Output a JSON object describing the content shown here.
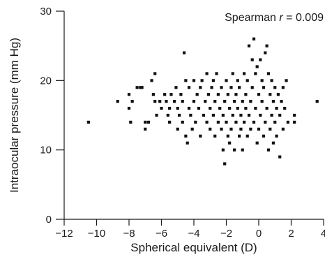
{
  "chart_data": {
    "type": "scatter",
    "title": "",
    "xlabel": "Spherical equivalent (D)",
    "ylabel": "Intraocular pressure (mm Hg)",
    "xlim": [
      -12,
      4
    ],
    "ylim": [
      0,
      30
    ],
    "x_ticks": [
      -12,
      -10,
      -8,
      -6,
      -4,
      -2,
      0,
      2,
      4
    ],
    "x_tick_labels": [
      "−12",
      "−10",
      "−8",
      "−6",
      "−4",
      "−2",
      "0",
      "2",
      "4"
    ],
    "y_ticks": [
      0,
      10,
      20,
      30
    ],
    "y_tick_labels": [
      "0",
      "10",
      "20",
      "30"
    ],
    "grid": false,
    "legend": "none",
    "annotation": {
      "prefix": "Spearman ",
      "symbol": "r",
      "suffix": " = 0.009"
    },
    "marker_color": "#111111",
    "series": [
      {
        "name": "",
        "points": [
          [
            -10.5,
            14
          ],
          [
            -8.7,
            17
          ],
          [
            -8.0,
            18
          ],
          [
            -8.0,
            16
          ],
          [
            -7.9,
            14
          ],
          [
            -7.8,
            17
          ],
          [
            -7.5,
            19
          ],
          [
            -7.3,
            19
          ],
          [
            -7.2,
            19
          ],
          [
            -7.0,
            14
          ],
          [
            -7.0,
            13
          ],
          [
            -6.8,
            14
          ],
          [
            -6.6,
            20
          ],
          [
            -6.5,
            18
          ],
          [
            -6.4,
            17
          ],
          [
            -6.4,
            21
          ],
          [
            -6.3,
            15
          ],
          [
            -6.1,
            17
          ],
          [
            -6.0,
            16
          ],
          [
            -5.8,
            18
          ],
          [
            -5.7,
            17
          ],
          [
            -5.6,
            15
          ],
          [
            -5.5,
            16
          ],
          [
            -5.5,
            14
          ],
          [
            -5.4,
            18
          ],
          [
            -5.2,
            17
          ],
          [
            -5.1,
            19
          ],
          [
            -5.0,
            16
          ],
          [
            -5.0,
            13
          ],
          [
            -4.9,
            15
          ],
          [
            -4.8,
            18
          ],
          [
            -4.7,
            17
          ],
          [
            -4.7,
            14
          ],
          [
            -4.6,
            24
          ],
          [
            -4.5,
            12
          ],
          [
            -4.5,
            20
          ],
          [
            -4.4,
            11
          ],
          [
            -4.3,
            19
          ],
          [
            -4.3,
            16
          ],
          [
            -4.2,
            15
          ],
          [
            -4.1,
            13
          ],
          [
            -4.0,
            17
          ],
          [
            -4.0,
            20
          ],
          [
            -3.9,
            14
          ],
          [
            -3.8,
            18
          ],
          [
            -3.7,
            16
          ],
          [
            -3.6,
            12
          ],
          [
            -3.6,
            19
          ],
          [
            -3.5,
            20
          ],
          [
            -3.4,
            15
          ],
          [
            -3.3,
            17
          ],
          [
            -3.2,
            21
          ],
          [
            -3.2,
            14
          ],
          [
            -3.1,
            18
          ],
          [
            -3.0,
            13
          ],
          [
            -3.0,
            16
          ],
          [
            -2.9,
            19
          ],
          [
            -2.8,
            15
          ],
          [
            -2.8,
            20
          ],
          [
            -2.7,
            12
          ],
          [
            -2.7,
            17
          ],
          [
            -2.6,
            21
          ],
          [
            -2.5,
            14
          ],
          [
            -2.5,
            18
          ],
          [
            -2.4,
            16
          ],
          [
            -2.3,
            13
          ],
          [
            -2.3,
            19
          ],
          [
            -2.2,
            15
          ],
          [
            -2.2,
            10
          ],
          [
            -2.1,
            8
          ],
          [
            -2.1,
            17
          ],
          [
            -2.0,
            20
          ],
          [
            -2.0,
            14
          ],
          [
            -1.9,
            12
          ],
          [
            -1.9,
            18
          ],
          [
            -1.8,
            16
          ],
          [
            -1.8,
            11
          ],
          [
            -1.7,
            19
          ],
          [
            -1.7,
            13
          ],
          [
            -1.6,
            15
          ],
          [
            -1.6,
            21
          ],
          [
            -1.5,
            17
          ],
          [
            -1.5,
            10
          ],
          [
            -1.4,
            14
          ],
          [
            -1.4,
            18
          ],
          [
            -1.3,
            20
          ],
          [
            -1.3,
            16
          ],
          [
            -1.2,
            12
          ],
          [
            -1.2,
            19
          ],
          [
            -1.1,
            13
          ],
          [
            -1.1,
            15
          ],
          [
            -1.0,
            17
          ],
          [
            -1.0,
            10
          ],
          [
            -0.9,
            21
          ],
          [
            -0.9,
            14
          ],
          [
            -0.8,
            16
          ],
          [
            -0.8,
            18
          ],
          [
            -0.7,
            12
          ],
          [
            -0.7,
            20
          ],
          [
            -0.6,
            25
          ],
          [
            -0.6,
            15
          ],
          [
            -0.5,
            13
          ],
          [
            -0.5,
            17
          ],
          [
            -0.4,
            23
          ],
          [
            -0.4,
            19
          ],
          [
            -0.3,
            26
          ],
          [
            -0.3,
            14
          ],
          [
            -0.2,
            21
          ],
          [
            -0.2,
            16
          ],
          [
            -0.1,
            22
          ],
          [
            -0.1,
            11
          ],
          [
            0.0,
            18
          ],
          [
            0.0,
            13
          ],
          [
            0.1,
            23
          ],
          [
            0.1,
            15
          ],
          [
            0.2,
            20
          ],
          [
            0.2,
            17
          ],
          [
            0.3,
            12
          ],
          [
            0.3,
            19
          ],
          [
            0.4,
            24
          ],
          [
            0.4,
            14
          ],
          [
            0.5,
            25
          ],
          [
            0.5,
            16
          ],
          [
            0.6,
            21
          ],
          [
            0.6,
            10
          ],
          [
            0.7,
            18
          ],
          [
            0.7,
            13
          ],
          [
            0.8,
            20
          ],
          [
            0.8,
            15
          ],
          [
            0.9,
            17
          ],
          [
            0.9,
            11
          ],
          [
            1.0,
            19
          ],
          [
            1.0,
            14
          ],
          [
            1.1,
            16
          ],
          [
            1.1,
            12
          ],
          [
            1.2,
            18
          ],
          [
            1.3,
            9
          ],
          [
            1.3,
            15
          ],
          [
            1.4,
            17
          ],
          [
            1.5,
            13
          ],
          [
            1.5,
            19
          ],
          [
            1.6,
            16
          ],
          [
            1.7,
            20
          ],
          [
            1.8,
            14
          ],
          [
            2.2,
            15
          ],
          [
            2.2,
            14
          ],
          [
            3.6,
            17
          ]
        ]
      }
    ]
  }
}
